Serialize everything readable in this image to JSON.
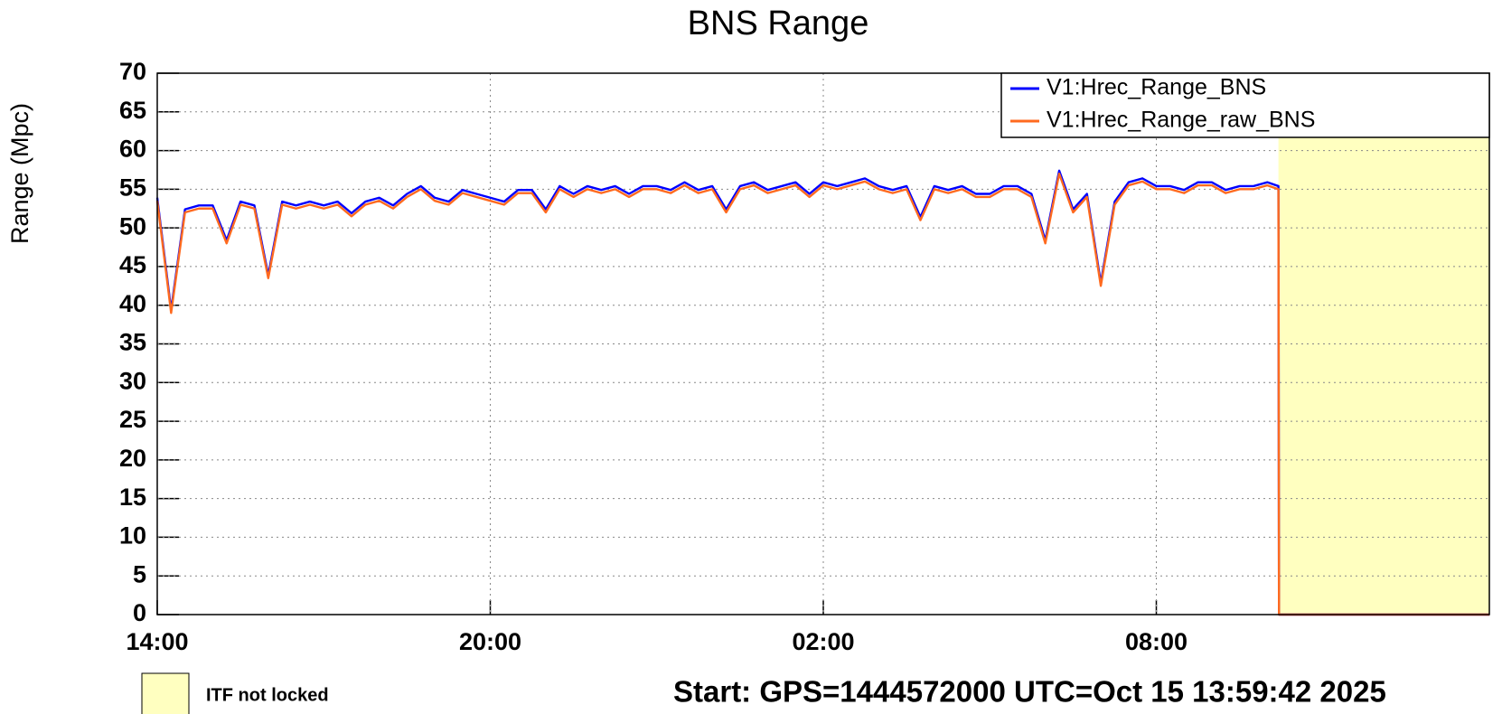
{
  "chart_data": {
    "type": "line",
    "title": "BNS Range",
    "y_label": "Range (Mpc)",
    "x": [
      0,
      0.25,
      0.5,
      0.75,
      1,
      1.25,
      1.5,
      1.75,
      2,
      2.25,
      2.5,
      2.75,
      3,
      3.25,
      3.5,
      3.75,
      4,
      4.25,
      4.5,
      4.75,
      5,
      5.25,
      5.5,
      5.75,
      6,
      6.25,
      6.5,
      6.75,
      7,
      7.25,
      7.5,
      7.75,
      8,
      8.25,
      8.5,
      8.75,
      9,
      9.25,
      9.5,
      9.75,
      10,
      10.25,
      10.5,
      10.75,
      11,
      11.25,
      11.5,
      11.75,
      12,
      12.25,
      12.5,
      12.75,
      13,
      13.25,
      13.5,
      13.75,
      14,
      14.25,
      14.5,
      14.75,
      15,
      15.25,
      15.5,
      15.75,
      16,
      16.25,
      16.5,
      16.75,
      17,
      17.25,
      17.5,
      17.75,
      18,
      18.25,
      18.5,
      18.75,
      19,
      19.25,
      19.5,
      19.75,
      20,
      20.2,
      20.21,
      24
    ],
    "series": [
      {
        "name": "V1:Hrec_Range_BNS",
        "color": "#0000ff",
        "values": [
          53.9,
          39.4,
          52.4,
          52.9,
          52.9,
          48.4,
          53.4,
          52.9,
          43.9,
          53.4,
          52.9,
          53.4,
          52.9,
          53.4,
          51.9,
          53.4,
          53.9,
          52.9,
          54.4,
          55.4,
          53.9,
          53.4,
          54.9,
          54.4,
          53.9,
          53.4,
          54.9,
          54.9,
          52.4,
          55.4,
          54.4,
          55.4,
          54.9,
          55.4,
          54.4,
          55.4,
          55.4,
          54.9,
          55.9,
          54.9,
          55.4,
          52.4,
          55.4,
          55.9,
          54.9,
          55.4,
          55.9,
          54.4,
          55.9,
          55.4,
          55.9,
          56.4,
          55.4,
          54.9,
          55.4,
          51.4,
          55.4,
          54.9,
          55.4,
          54.4,
          54.4,
          55.4,
          55.4,
          54.4,
          48.4,
          57.4,
          52.4,
          54.4,
          42.9,
          53.4,
          55.9,
          56.4,
          55.4,
          55.4,
          54.9,
          55.9,
          55.9,
          54.9,
          55.4,
          55.4,
          55.9,
          55.4,
          0,
          0
        ]
      },
      {
        "name": "V1:Hrec_Range_raw_BNS",
        "color": "#ff6a1f",
        "values": [
          53.5,
          39,
          52,
          52.5,
          52.5,
          48,
          53,
          52.5,
          43.5,
          53,
          52.5,
          53,
          52.5,
          53,
          51.5,
          53,
          53.5,
          52.5,
          54,
          55,
          53.5,
          53,
          54.5,
          54,
          53.5,
          53,
          54.5,
          54.5,
          52,
          55,
          54,
          55,
          54.5,
          55,
          54,
          55,
          55,
          54.5,
          55.5,
          54.5,
          55,
          52,
          55,
          55.5,
          54.5,
          55,
          55.5,
          54,
          55.5,
          55,
          55.5,
          56,
          55,
          54.5,
          55,
          51,
          55,
          54.5,
          55,
          54,
          54,
          55,
          55,
          54,
          48,
          57,
          52,
          54,
          42.5,
          53,
          55.5,
          56,
          55,
          55,
          54.5,
          55.5,
          55.5,
          54.5,
          55,
          55,
          55.5,
          55,
          0,
          0
        ]
      }
    ],
    "xlim": [
      0,
      24
    ],
    "xticks": [
      {
        "value": 0,
        "label": "14:00"
      },
      {
        "value": 6,
        "label": "20:00"
      },
      {
        "value": 12,
        "label": "02:00"
      },
      {
        "value": 18,
        "label": "08:00"
      }
    ],
    "ylim": [
      0,
      70
    ],
    "yticks": [
      0,
      5,
      10,
      15,
      20,
      25,
      30,
      35,
      40,
      45,
      50,
      55,
      60,
      65,
      70
    ],
    "grid": true,
    "legend": "upper right",
    "shaded_regions": [
      {
        "label": "ITF not locked",
        "x": [
          20.2,
          24
        ],
        "color": "#ffffc0"
      }
    ],
    "footer": "Start: GPS=1444572000 UTC=Oct 15 13:59:42 2025"
  }
}
